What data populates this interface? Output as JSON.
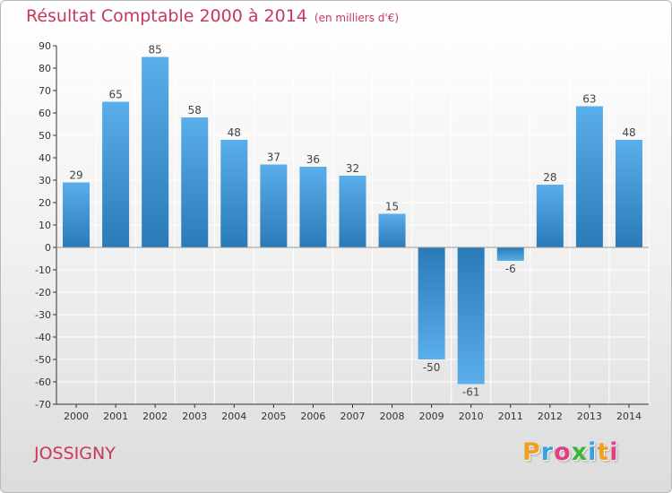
{
  "colors": {
    "accent": "#c8385a",
    "bar_light": "#5aaeea",
    "bar_dark": "#2a7ab8",
    "axis": "#333333",
    "grid": "#ffffff"
  },
  "header": {
    "title": "Résultat Comptable 2000 à 2014",
    "subtitle": "(en milliers d'€)"
  },
  "footer": {
    "place_name": "JOSSIGNY",
    "logo_letters": [
      "P",
      "r",
      "o",
      "x",
      "i",
      "t",
      "i"
    ],
    "logo_colors": [
      "#f0a020",
      "#3aa0e0",
      "#e04080",
      "#38b838",
      "#3aa0e0",
      "#f0a020",
      "#e04080"
    ]
  },
  "chart_data": {
    "type": "bar",
    "title": "Résultat Comptable 2000 à 2014",
    "subtitle": "(en milliers d'€)",
    "xlabel": "",
    "ylabel": "",
    "categories": [
      "2000",
      "2001",
      "2002",
      "2003",
      "2004",
      "2005",
      "2006",
      "2007",
      "2008",
      "2009",
      "2010",
      "2011",
      "2012",
      "2013",
      "2014"
    ],
    "values": [
      29,
      65,
      85,
      58,
      48,
      37,
      36,
      32,
      15,
      -50,
      -61,
      -6,
      28,
      63,
      48
    ],
    "data_labels": [
      "29",
      "65",
      "85",
      "58",
      "48",
      "37",
      "36",
      "32",
      "15",
      "-50",
      "-61",
      "-6",
      "28",
      "63",
      "48"
    ],
    "ylim": [
      -70,
      90
    ],
    "yticks": [
      90,
      80,
      70,
      60,
      50,
      40,
      30,
      20,
      10,
      0,
      -10,
      -20,
      -30,
      -40,
      -50,
      -60,
      -70
    ],
    "ytick_labels": [
      "90",
      "80",
      "70",
      "60",
      "50",
      "40",
      "30",
      "20",
      "10",
      "0",
      "-10",
      "-20",
      "-30",
      "-40",
      "-50",
      "-60",
      "-70"
    ],
    "grid": true
  }
}
